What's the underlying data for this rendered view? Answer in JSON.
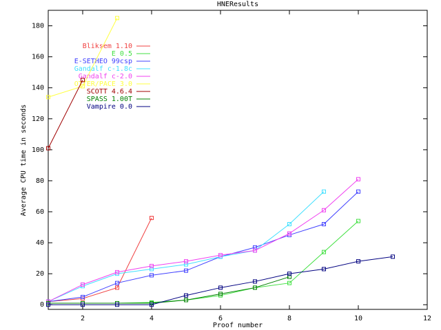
{
  "chart_data": {
    "type": "line",
    "title": "HNEResults",
    "x_label": "Proof number",
    "y_label": "Average CPU time in seconds",
    "x": [
      1,
      2,
      3,
      4,
      5,
      6,
      7,
      8,
      9,
      10,
      11
    ],
    "xlim": [
      1,
      12
    ],
    "xticks": [
      2,
      4,
      6,
      8,
      10,
      12
    ],
    "ylim": [
      -3,
      190
    ],
    "yticks": [
      0,
      20,
      40,
      60,
      80,
      100,
      120,
      140,
      160,
      180
    ],
    "grid": false,
    "legend": "upper left",
    "series": [
      {
        "name": "Bliksem 1.10",
        "color": "#f04040",
        "values": [
          2,
          4,
          11,
          56,
          null,
          null,
          null,
          null,
          null,
          null,
          null
        ]
      },
      {
        "name": "E 0.5",
        "color": "#40e040",
        "values": [
          1,
          1,
          1,
          1.5,
          3,
          6,
          11,
          14,
          34,
          54,
          null
        ]
      },
      {
        "name": "E-SETHEO 99csp",
        "color": "#4040ff",
        "values": [
          2,
          5,
          14,
          19,
          22,
          31,
          37,
          45,
          52,
          73,
          null
        ]
      },
      {
        "name": "Gandalf c-1.8c",
        "color": "#40e0ff",
        "values": [
          2,
          12,
          20,
          23,
          26,
          31,
          35,
          52,
          73,
          null,
          null
        ]
      },
      {
        "name": "Gandalf c-2.0",
        "color": "#f040f0",
        "values": [
          2,
          13,
          21,
          25,
          28,
          32,
          35,
          46,
          61,
          81,
          null
        ]
      },
      {
        "name": "OTTER/PACE 3.0",
        "color": "#ffff40",
        "values": [
          134,
          141,
          185,
          null,
          null,
          null,
          null,
          null,
          null,
          null,
          null
        ]
      },
      {
        "name": "SCOTT 4.6.4",
        "color": "#a00000",
        "values": [
          101,
          145,
          null,
          null,
          null,
          null,
          null,
          null,
          null,
          null,
          null
        ]
      },
      {
        "name": "SPASS 1.00T",
        "color": "#008000",
        "values": [
          1,
          1,
          1,
          1,
          3,
          7,
          11,
          18,
          null,
          null,
          null
        ]
      },
      {
        "name": "Vampire 0.0",
        "color": "#000080",
        "values": [
          0,
          0,
          0,
          0,
          6,
          11,
          15,
          20,
          23,
          28,
          31
        ]
      }
    ]
  }
}
